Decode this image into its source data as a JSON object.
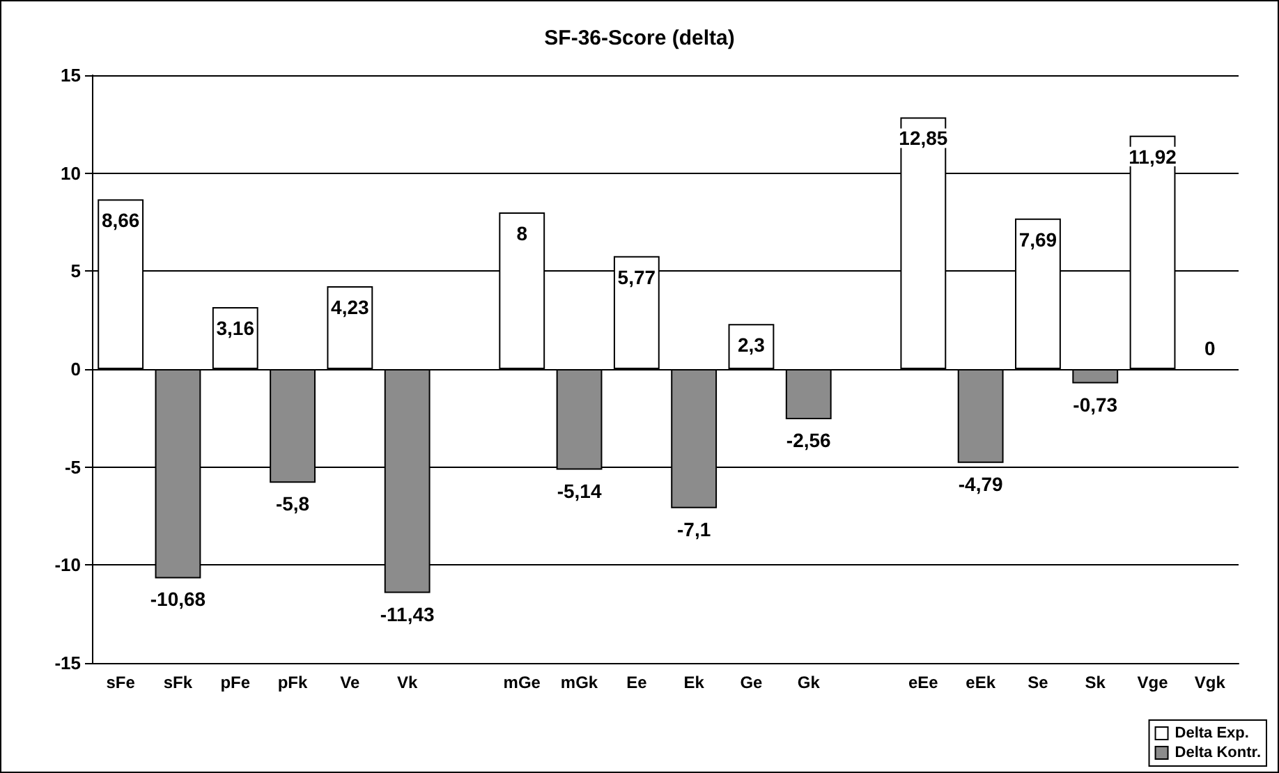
{
  "chart_data": {
    "type": "bar",
    "title": "SF-36-Score (delta)",
    "categories": [
      "sFe",
      "sFk",
      "pFe",
      "pFk",
      "Ve",
      "Vk",
      null,
      "mGe",
      "mGk",
      "Ee",
      "Ek",
      "Ge",
      "Gk",
      null,
      "eEe",
      "eEk",
      "Se",
      "Sk",
      "Vge",
      "Vgk"
    ],
    "series": [
      {
        "name": "Delta Exp.",
        "color": "#ffffff",
        "values": [
          8.66,
          null,
          3.16,
          null,
          4.23,
          null,
          null,
          8,
          null,
          5.77,
          null,
          2.3,
          null,
          null,
          12.85,
          null,
          7.69,
          null,
          11.92,
          null
        ],
        "value_labels": [
          "8,66",
          null,
          "3,16",
          null,
          "4,23",
          null,
          null,
          "8",
          null,
          "5,77",
          null,
          "2,3",
          null,
          null,
          "12,85",
          null,
          "7,69",
          null,
          "11,92",
          null
        ]
      },
      {
        "name": "Delta Kontr.",
        "color": "#8c8c8c",
        "values": [
          null,
          -10.68,
          null,
          -5.8,
          null,
          -11.43,
          null,
          null,
          -5.14,
          null,
          -7.1,
          null,
          -2.56,
          null,
          null,
          -4.79,
          null,
          -0.73,
          null,
          0
        ],
        "value_labels": [
          null,
          "-10,68",
          null,
          "-5,8",
          null,
          "-11,43",
          null,
          null,
          "-5,14",
          null,
          "-7,1",
          null,
          "-2,56",
          null,
          null,
          "-4,79",
          null,
          "-0,73",
          null,
          "0"
        ]
      }
    ],
    "ylim": [
      -15,
      15
    ],
    "yticks": [
      -15,
      -10,
      -5,
      0,
      5,
      10,
      15
    ],
    "grid": "y",
    "legend": "bottom right"
  }
}
